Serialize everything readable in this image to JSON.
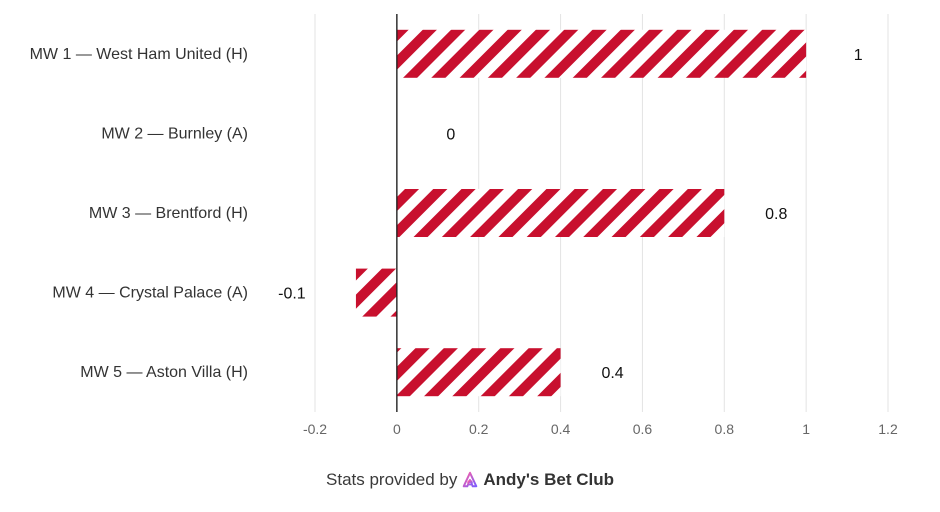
{
  "chart_data": {
    "type": "bar",
    "orientation": "horizontal",
    "categories": [
      "MW 1 — West Ham United (H)",
      "MW 2 — Burnley (A)",
      "MW 3 — Brentford (H)",
      "MW 4 — Crystal Palace (A)",
      "MW 5 — Aston Villa (H)"
    ],
    "values": [
      1,
      0,
      0.8,
      -0.1,
      0.4
    ],
    "data_labels": [
      "1",
      "0",
      "0.8",
      "-0.1",
      "0.4"
    ],
    "xlim": [
      -0.2,
      1.2
    ],
    "xticks": [
      "-0.2",
      "0",
      "0.2",
      "0.4",
      "0.6",
      "0.8",
      "1",
      "1.2"
    ],
    "grid": "vertical",
    "bar_color": "#c8102e",
    "bar_pattern": "diagonal-stripes",
    "title": "",
    "xlabel": "",
    "ylabel": ""
  },
  "footer": {
    "prefix": "Stats provided by",
    "brand": "Andy's Bet Club",
    "logo_icon": "andys-bet-club-logo-icon"
  }
}
